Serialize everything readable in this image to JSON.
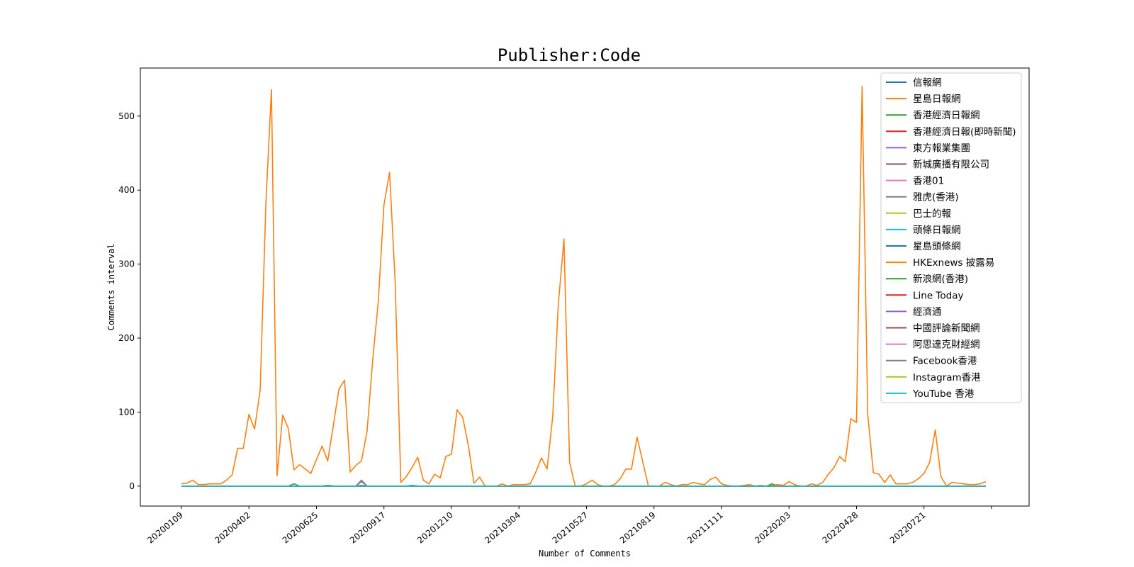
{
  "chart_data": {
    "type": "line",
    "title": "Publisher:Code",
    "xlabel": "Number of Comments",
    "ylabel": "Comments interval",
    "ylim": [
      -27,
      565
    ],
    "y_ticks": [
      0,
      100,
      200,
      300,
      400,
      500
    ],
    "x_tick_labels": [
      "20200109",
      "20200402",
      "20200625",
      "20200917",
      "20201210",
      "20210304",
      "20210527",
      "20210819",
      "20211111",
      "20220203",
      "20220428",
      "20220721",
      ""
    ],
    "x_count": 144,
    "legend_position": "upper right",
    "grid": false,
    "series": [
      {
        "name": "信報網",
        "color": "#1f77b4",
        "values": [
          0
        ]
      },
      {
        "name": "星島日報網",
        "color": "#ff7f0e",
        "values": [
          3,
          4,
          8,
          2,
          2,
          3,
          3,
          3,
          8,
          15,
          51,
          51,
          97,
          77,
          130,
          380,
          536,
          14,
          96,
          78,
          22,
          29,
          23,
          17,
          36,
          54,
          34,
          82,
          131,
          143,
          19,
          28,
          34,
          74,
          170,
          250,
          380,
          424,
          275,
          5,
          13,
          25,
          39,
          8,
          3,
          16,
          11,
          40,
          43,
          103,
          93,
          55,
          4,
          12,
          0,
          0,
          0,
          3,
          0,
          2,
          2,
          2,
          3,
          19,
          38,
          23,
          94,
          246,
          334,
          32,
          0,
          0,
          3,
          8,
          2,
          0,
          0,
          2,
          10,
          23,
          23,
          66,
          33,
          0,
          0,
          0,
          5,
          2,
          0,
          2,
          2,
          5,
          3,
          2,
          9,
          12,
          3,
          1,
          0,
          0,
          1,
          2,
          0,
          1,
          0,
          1,
          2,
          1,
          6,
          2,
          0,
          0,
          3,
          1,
          5,
          16,
          25,
          40,
          33,
          91,
          86,
          540,
          97,
          18,
          16,
          5,
          15,
          3,
          3,
          3,
          5,
          10,
          17,
          32,
          76,
          13,
          0,
          5,
          4,
          3,
          2,
          2,
          3,
          6
        ]
      },
      {
        "name": "香港經濟日報網",
        "color": "#2ca02c",
        "values": [
          0,
          0,
          0,
          0,
          0,
          0,
          0,
          0,
          0,
          0,
          0,
          0,
          0,
          0,
          0,
          0,
          0,
          0,
          0,
          0,
          3,
          0,
          0,
          0,
          0,
          0,
          1,
          0,
          0,
          0,
          0,
          0,
          1,
          0,
          0,
          0,
          0,
          0,
          0,
          0,
          0,
          1,
          0,
          0,
          0,
          0,
          0,
          0,
          0,
          0,
          0,
          0,
          0,
          0,
          0,
          0,
          0,
          0,
          0,
          0,
          0,
          0,
          0,
          0,
          0,
          0,
          0,
          0,
          0,
          0,
          0,
          0,
          0,
          0,
          0,
          0,
          0,
          0,
          0,
          0,
          0,
          0,
          0,
          0,
          0,
          0,
          0,
          0,
          0,
          0,
          0,
          0,
          0,
          0,
          0,
          0,
          0,
          0,
          0,
          0,
          0,
          0,
          0,
          0,
          0,
          3,
          0,
          0,
          0,
          0,
          0,
          0,
          0,
          0,
          0,
          0,
          0,
          0,
          0,
          0,
          0,
          0,
          0,
          0,
          0,
          0,
          0,
          0,
          0,
          0,
          0,
          0,
          0,
          0,
          0,
          0,
          0,
          0,
          0,
          0,
          0,
          0,
          0,
          0
        ]
      },
      {
        "name": "香港經濟日報(即時新聞)",
        "color": "#d62728",
        "values": [
          0
        ]
      },
      {
        "name": "東方報業集團",
        "color": "#9467bd",
        "values": [
          0,
          0,
          0,
          0,
          0,
          0,
          0,
          0,
          0,
          0,
          0,
          0,
          0,
          0,
          0,
          0,
          0,
          0,
          0,
          0,
          0,
          0,
          0,
          0,
          0,
          0,
          0,
          0,
          0,
          0,
          0,
          0,
          6,
          0,
          0,
          0,
          0,
          0,
          0,
          0,
          0,
          0,
          0,
          0,
          0,
          0,
          0,
          0,
          0,
          0,
          0,
          0,
          0,
          0,
          0,
          0,
          0,
          0,
          0,
          0,
          0,
          0,
          0,
          0,
          0,
          0,
          0,
          0,
          0,
          0,
          0,
          0,
          0,
          0,
          0,
          0,
          0,
          0,
          0,
          0,
          0,
          0,
          0,
          0,
          0,
          0,
          0,
          0,
          0,
          0,
          0,
          0,
          0,
          0,
          0,
          0,
          0,
          0,
          0,
          0,
          0,
          0,
          0,
          0,
          0,
          0,
          0,
          0,
          0,
          0,
          0,
          0,
          0,
          0,
          0,
          0,
          0,
          0,
          0,
          0,
          0,
          0,
          0,
          0,
          0,
          0,
          0,
          0,
          0,
          0,
          0,
          0,
          0,
          0,
          0,
          0,
          0,
          0,
          0,
          0,
          0,
          0,
          0,
          0
        ]
      },
      {
        "name": "新城廣播有限公司",
        "color": "#8c564b",
        "values": [
          0
        ]
      },
      {
        "name": "香港01",
        "color": "#e377c2",
        "values": [
          0
        ]
      },
      {
        "name": "雅虎(香港)",
        "color": "#7f7f7f",
        "values": [
          0,
          0,
          0,
          0,
          0,
          0,
          0,
          0,
          0,
          0,
          0,
          0,
          0,
          0,
          0,
          0,
          0,
          0,
          0,
          0,
          0,
          0,
          0,
          0,
          0,
          0,
          0,
          0,
          0,
          0,
          0,
          0,
          8,
          0,
          0,
          0,
          0,
          0,
          0,
          0,
          0,
          0,
          0,
          0,
          0,
          0,
          0,
          0,
          0,
          0,
          0,
          0,
          0,
          0,
          0,
          0,
          0,
          0,
          0,
          0,
          0,
          0,
          0,
          0,
          0,
          0,
          0,
          0,
          0,
          0,
          0,
          0,
          0,
          0,
          0,
          0,
          0,
          0,
          0,
          0,
          0,
          0,
          0,
          0,
          0,
          0,
          0,
          0,
          0,
          0,
          0,
          0,
          0,
          0,
          0,
          0,
          0,
          0,
          0,
          0,
          0,
          0,
          0,
          0,
          0,
          0,
          0,
          0,
          0,
          0,
          0,
          0,
          0,
          0,
          0,
          0,
          0,
          0,
          0,
          0,
          0,
          0,
          0,
          0,
          0,
          0,
          0,
          0,
          0,
          0,
          0,
          0,
          0,
          0,
          0,
          0,
          0,
          0,
          0,
          0,
          0,
          0,
          0,
          0
        ]
      },
      {
        "name": "巴士的報",
        "color": "#bcbd22",
        "values": [
          0
        ]
      },
      {
        "name": "頭條日報網",
        "color": "#17becf",
        "values": [
          0
        ]
      },
      {
        "name": "星島頭條網",
        "color": "#1f77b4",
        "values": [
          0
        ]
      },
      {
        "name": "HKExnews 披露易",
        "color": "#ff7f0e",
        "values": [
          0
        ]
      },
      {
        "name": "新浪網(香港)",
        "color": "#2ca02c",
        "values": [
          0
        ]
      },
      {
        "name": "Line Today",
        "color": "#d62728",
        "values": [
          0
        ]
      },
      {
        "name": "經濟通",
        "color": "#9467bd",
        "values": [
          0
        ]
      },
      {
        "name": "中國評論新聞網",
        "color": "#8c564b",
        "values": [
          0
        ]
      },
      {
        "name": "阿思達克財經網",
        "color": "#e377c2",
        "values": [
          0
        ]
      },
      {
        "name": "Facebook香港",
        "color": "#7f7f7f",
        "values": [
          0
        ]
      },
      {
        "name": "Instagram香港",
        "color": "#bcbd22",
        "values": [
          0
        ]
      },
      {
        "name": "YouTube 香港",
        "color": "#17becf",
        "values": [
          0
        ]
      }
    ]
  }
}
